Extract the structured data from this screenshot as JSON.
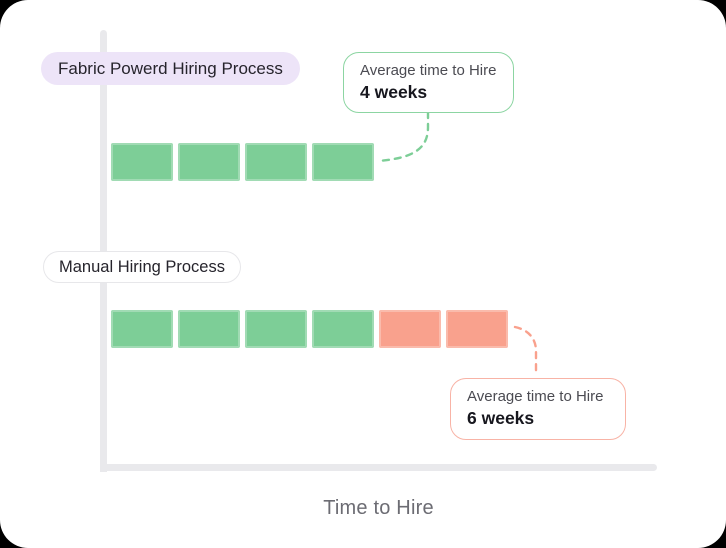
{
  "colors": {
    "green": "#7DCE97",
    "salmon": "#F9A18D",
    "green_border": "#8CD5A2",
    "salmon_border": "#F8B3A6",
    "lavender": "#EDE4F8",
    "axis_gray": "#E9E9EC",
    "text_dark": "#26242C",
    "text_gray": "#4B4B52",
    "axis_label_gray": "#6C6C73"
  },
  "chart_data": {
    "type": "bar",
    "orientation": "horizontal",
    "unit": "weeks",
    "xlabel": "Time to Hire",
    "grid": false,
    "legend": false,
    "categories": [
      "Fabric Powerd Hiring Process",
      "Manual Hiring Process"
    ],
    "series": [
      {
        "name": "Fabric Powerd Hiring Process",
        "weeks": 4,
        "segment_colors": [
          "green",
          "green",
          "green",
          "green"
        ],
        "annotation": {
          "title": "Average time to Hire",
          "value": "4 weeks"
        }
      },
      {
        "name": "Manual Hiring Process",
        "weeks": 6,
        "segment_colors": [
          "green",
          "green",
          "green",
          "green",
          "salmon",
          "salmon"
        ],
        "annotation": {
          "title": "Average time to Hire",
          "value": "6 weeks"
        }
      }
    ]
  }
}
